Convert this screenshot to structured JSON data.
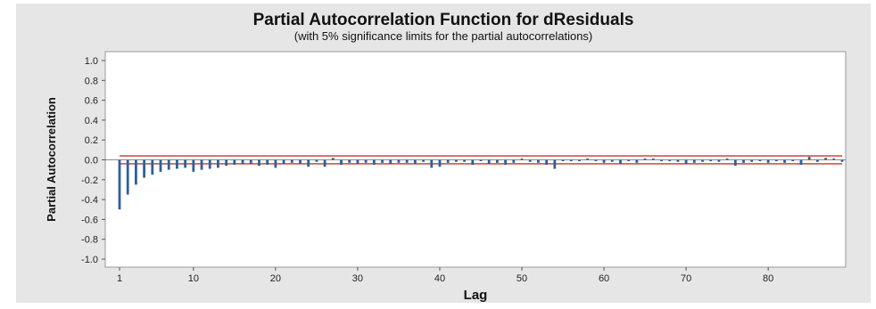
{
  "colors": {
    "panel_background": "#e6e6e6",
    "plot_background": "#ffffff",
    "bar": "#2e5f9e",
    "significance_limit": "#c0392b",
    "zero_line": "#8a8a8a"
  },
  "chart_data": {
    "type": "bar",
    "title": "Partial Autocorrelation Function for dResiduals",
    "subtitle": "(with 5% significance limits for the partial autocorrelations)",
    "xlabel": "Lag",
    "ylabel": "Partial Autocorrelation",
    "xlim": [
      1,
      89
    ],
    "ylim": [
      -1.0,
      1.0
    ],
    "x_ticks": [
      1,
      10,
      20,
      30,
      40,
      50,
      60,
      70,
      80
    ],
    "y_ticks": [
      "1.0",
      "0.8",
      "0.6",
      "0.4",
      "0.2",
      "0.0",
      "-0.2",
      "-0.4",
      "-0.6",
      "-0.8",
      "-1.0"
    ],
    "significance_limits": [
      0.04,
      -0.04
    ],
    "grid": false,
    "legend": "none",
    "series": [
      {
        "values": [
          -0.5,
          -0.35,
          -0.25,
          -0.18,
          -0.15,
          -0.12,
          -0.1,
          -0.09,
          -0.08,
          -0.12,
          -0.1,
          -0.09,
          -0.08,
          -0.06,
          -0.05,
          -0.04,
          -0.04,
          -0.06,
          -0.05,
          -0.08,
          -0.04,
          -0.03,
          -0.04,
          -0.07,
          -0.02,
          -0.07,
          0.02,
          -0.05,
          -0.03,
          -0.04,
          -0.03,
          -0.05,
          -0.03,
          -0.04,
          -0.03,
          -0.03,
          -0.04,
          -0.02,
          -0.08,
          -0.07,
          -0.03,
          -0.02,
          -0.02,
          -0.05,
          -0.01,
          -0.04,
          -0.03,
          -0.05,
          -0.03,
          0.01,
          -0.02,
          -0.03,
          -0.05,
          -0.09,
          -0.01,
          -0.01,
          -0.01,
          0.01,
          -0.01,
          -0.03,
          -0.02,
          -0.04,
          -0.01,
          -0.03,
          0.01,
          0.0,
          -0.01,
          -0.01,
          -0.02,
          -0.04,
          -0.03,
          -0.02,
          -0.01,
          -0.02,
          0.01,
          -0.06,
          -0.03,
          -0.02,
          -0.01,
          -0.03,
          -0.01,
          -0.03,
          -0.01,
          -0.05,
          0.03,
          -0.02,
          0.02,
          0.01,
          -0.02
        ]
      }
    ]
  }
}
